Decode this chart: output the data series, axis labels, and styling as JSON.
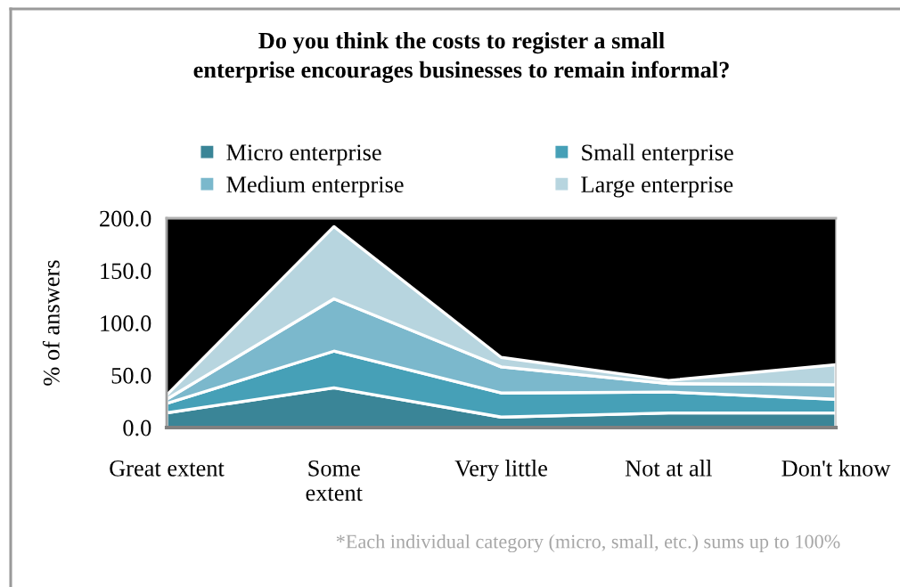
{
  "chart_data": {
    "type": "area",
    "stacked": true,
    "title": "Do you think the costs to register a small\nenterprise encourages businesses to remain informal?",
    "ylabel": "% of answers",
    "categories": [
      "Great extent",
      "Some\nextent",
      "Very little",
      "Not at all",
      "Don't know"
    ],
    "series": [
      {
        "name": "Micro enterprise",
        "color": "#3a8597",
        "values": [
          14,
          38,
          10,
          14,
          14
        ]
      },
      {
        "name": "Small enterprise",
        "color": "#46a0b7",
        "values": [
          9,
          35,
          23,
          20,
          13
        ]
      },
      {
        "name": "Medium enterprise",
        "color": "#7bb8cc",
        "values": [
          4,
          50,
          25,
          8,
          14
        ]
      },
      {
        "name": "Large enterprise",
        "color": "#b7d5df",
        "values": [
          4,
          69,
          9,
          3,
          19
        ]
      }
    ],
    "ylim": [
      0,
      200
    ],
    "yticks": [
      {
        "value": 0,
        "label": "0.0"
      },
      {
        "value": 50,
        "label": "50.0"
      },
      {
        "value": 100,
        "label": "100.0"
      },
      {
        "value": 150,
        "label": "150.0"
      },
      {
        "value": 200,
        "label": "200.0"
      }
    ],
    "legend": "top",
    "grid": false,
    "annotations": [
      "*Each individual category (micro, small, etc.) sums up to 100%"
    ]
  }
}
